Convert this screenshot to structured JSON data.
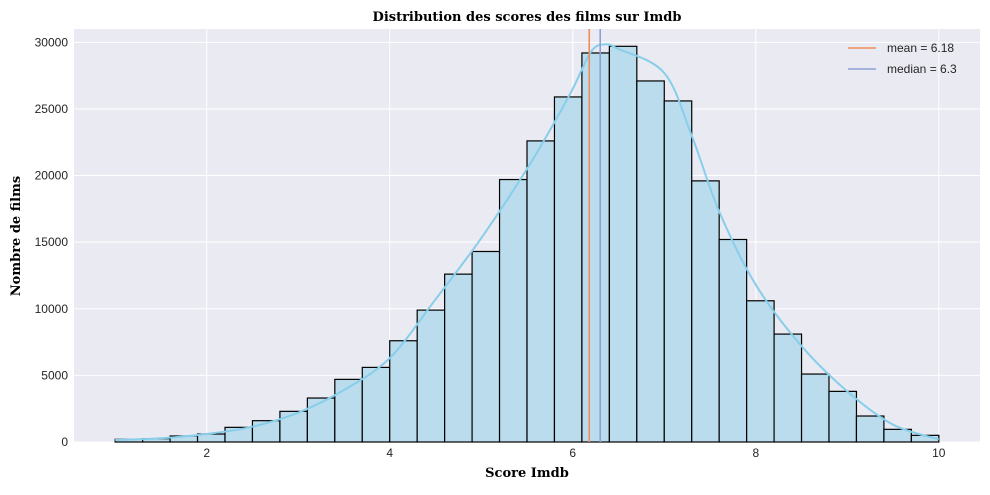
{
  "chart_data": {
    "type": "bar",
    "title": "Distribution des scores des films sur Imdb",
    "xlabel": "Score Imdb",
    "ylabel": "Nombre de films",
    "xlim": [
      0.55,
      10.45
    ],
    "ylim": [
      0,
      31000
    ],
    "x_ticks": [
      "2",
      "4",
      "6",
      "8",
      "10"
    ],
    "y_ticks": [
      "0",
      "5000",
      "10000",
      "15000",
      "20000",
      "25000",
      "30000"
    ],
    "grid": true,
    "legend_position": "top-right",
    "bins": [
      {
        "start": 1.0,
        "end": 1.3,
        "count": 200
      },
      {
        "start": 1.3,
        "end": 1.6,
        "count": 250
      },
      {
        "start": 1.6,
        "end": 1.9,
        "count": 450
      },
      {
        "start": 1.9,
        "end": 2.2,
        "count": 600
      },
      {
        "start": 2.2,
        "end": 2.5,
        "count": 1100
      },
      {
        "start": 2.5,
        "end": 2.8,
        "count": 1600
      },
      {
        "start": 2.8,
        "end": 3.1,
        "count": 2300
      },
      {
        "start": 3.1,
        "end": 3.4,
        "count": 3300
      },
      {
        "start": 3.4,
        "end": 3.7,
        "count": 4700
      },
      {
        "start": 3.7,
        "end": 4.0,
        "count": 5600
      },
      {
        "start": 4.0,
        "end": 4.3,
        "count": 7600
      },
      {
        "start": 4.3,
        "end": 4.6,
        "count": 9900
      },
      {
        "start": 4.6,
        "end": 4.9,
        "count": 12600
      },
      {
        "start": 4.9,
        "end": 5.2,
        "count": 14300
      },
      {
        "start": 5.2,
        "end": 5.5,
        "count": 19700
      },
      {
        "start": 5.5,
        "end": 5.8,
        "count": 22600
      },
      {
        "start": 5.8,
        "end": 6.1,
        "count": 25900
      },
      {
        "start": 6.1,
        "end": 6.4,
        "count": 29200
      },
      {
        "start": 6.4,
        "end": 6.7,
        "count": 29700
      },
      {
        "start": 6.7,
        "end": 7.0,
        "count": 27100
      },
      {
        "start": 7.0,
        "end": 7.3,
        "count": 25600
      },
      {
        "start": 7.3,
        "end": 7.6,
        "count": 19600
      },
      {
        "start": 7.6,
        "end": 7.9,
        "count": 15200
      },
      {
        "start": 7.9,
        "end": 8.2,
        "count": 10600
      },
      {
        "start": 8.2,
        "end": 8.5,
        "count": 8100
      },
      {
        "start": 8.5,
        "end": 8.8,
        "count": 5100
      },
      {
        "start": 8.8,
        "end": 9.1,
        "count": 3800
      },
      {
        "start": 9.1,
        "end": 9.4,
        "count": 1950
      },
      {
        "start": 9.4,
        "end": 9.7,
        "count": 950
      },
      {
        "start": 9.7,
        "end": 10.0,
        "count": 500
      }
    ],
    "kde": [
      [
        1.0,
        150
      ],
      [
        1.5,
        280
      ],
      [
        2.0,
        600
      ],
      [
        2.5,
        1150
      ],
      [
        3.0,
        2200
      ],
      [
        3.5,
        3900
      ],
      [
        4.0,
        6300
      ],
      [
        4.5,
        10700
      ],
      [
        5.0,
        15300
      ],
      [
        5.5,
        20500
      ],
      [
        5.8,
        24000
      ],
      [
        6.0,
        26500
      ],
      [
        6.2,
        29300
      ],
      [
        6.35,
        29850
      ],
      [
        6.5,
        29500
      ],
      [
        7.0,
        27700
      ],
      [
        7.3,
        23000
      ],
      [
        7.6,
        17300
      ],
      [
        8.0,
        11800
      ],
      [
        8.5,
        7200
      ],
      [
        9.0,
        3800
      ],
      [
        9.5,
        1300
      ],
      [
        10.0,
        200
      ]
    ],
    "reference_lines": [
      {
        "label": "mean = 6.18",
        "value": 6.18,
        "color": "#f28b59"
      },
      {
        "label": "median = 6.3",
        "value": 6.3,
        "color": "#8c9fd6"
      }
    ],
    "colors": {
      "background": "#ffffff",
      "plot_area": "#eaeaf2",
      "grid": "#ffffff",
      "bar_fill": "#bbdcec",
      "bar_edge": "#000000",
      "kde_line": "#87ceeb",
      "text": "#262626"
    }
  }
}
